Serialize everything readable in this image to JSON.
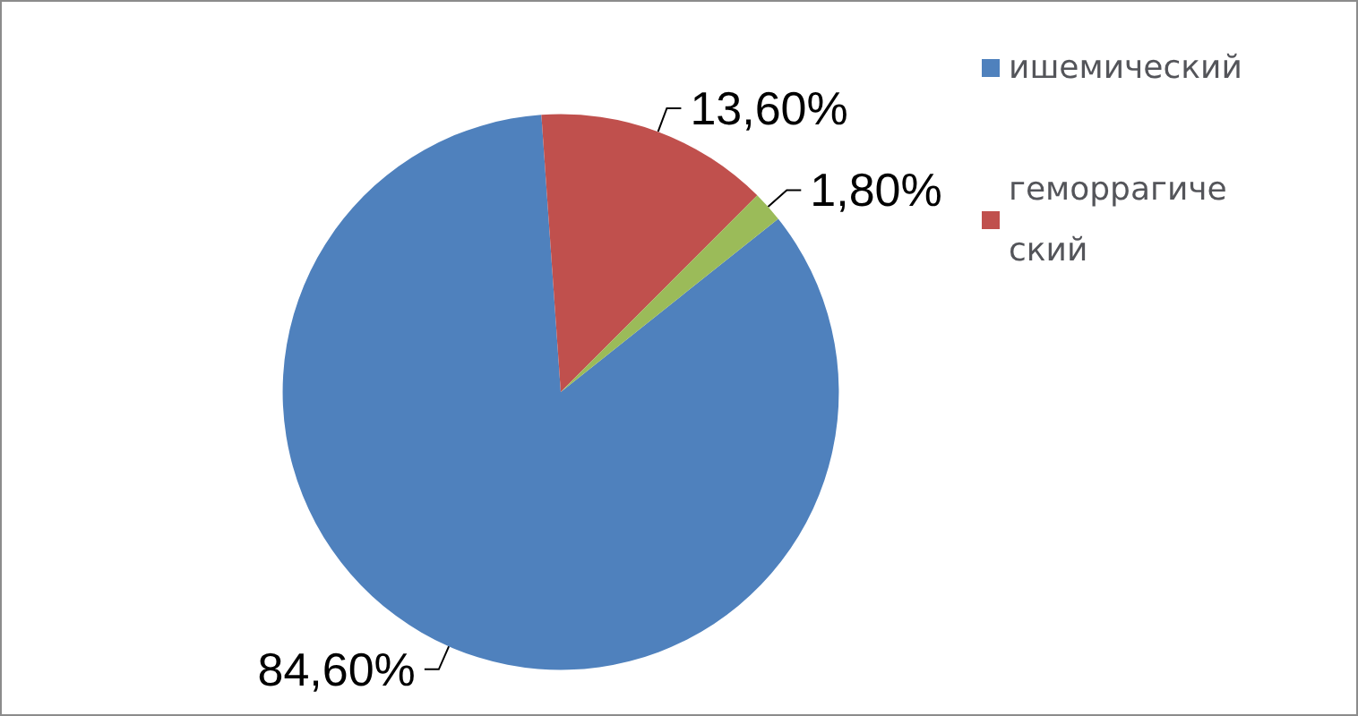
{
  "chart_data": {
    "type": "pie",
    "categories": [
      "ишемический",
      "геморрагический",
      null
    ],
    "values": [
      84.6,
      13.6,
      1.8
    ],
    "colors": [
      "#4f81bd",
      "#c0504d",
      "#9bbb59"
    ],
    "value_labels": [
      "84,60%",
      "13,60%",
      "1,80%"
    ],
    "legend": "right"
  }
}
